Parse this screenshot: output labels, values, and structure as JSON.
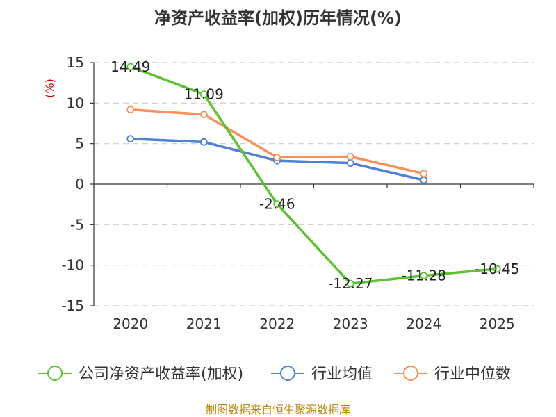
{
  "chart_data": {
    "type": "line",
    "title": "净资产收益率(加权)历年情况(%)",
    "ylabel": "(%)",
    "xlabel": "",
    "categories": [
      "2020",
      "2021",
      "2022",
      "2023",
      "2024",
      "2025"
    ],
    "ylim": [
      -15,
      15
    ],
    "yticks": [
      15,
      10,
      5,
      0,
      -5,
      -10,
      -15
    ],
    "grid": true,
    "legend_position": "bottom",
    "series": [
      {
        "name": "公司净资产收益率(加权)",
        "color": "#5cc22e",
        "values": [
          14.49,
          11.09,
          -2.46,
          -12.27,
          -11.28,
          -10.45
        ],
        "labels": [
          "14.49",
          "11.09",
          "-2.46",
          "-12.27",
          "-11.28",
          "-10.45"
        ]
      },
      {
        "name": "行业均值",
        "color": "#4e7fd9",
        "values": [
          5.6,
          5.2,
          2.9,
          2.6,
          0.5,
          null
        ]
      },
      {
        "name": "行业中位数",
        "color": "#f89058",
        "values": [
          9.2,
          8.6,
          3.3,
          3.4,
          1.3,
          null
        ]
      }
    ],
    "source": "制图数据来自恒生聚源数据库"
  }
}
